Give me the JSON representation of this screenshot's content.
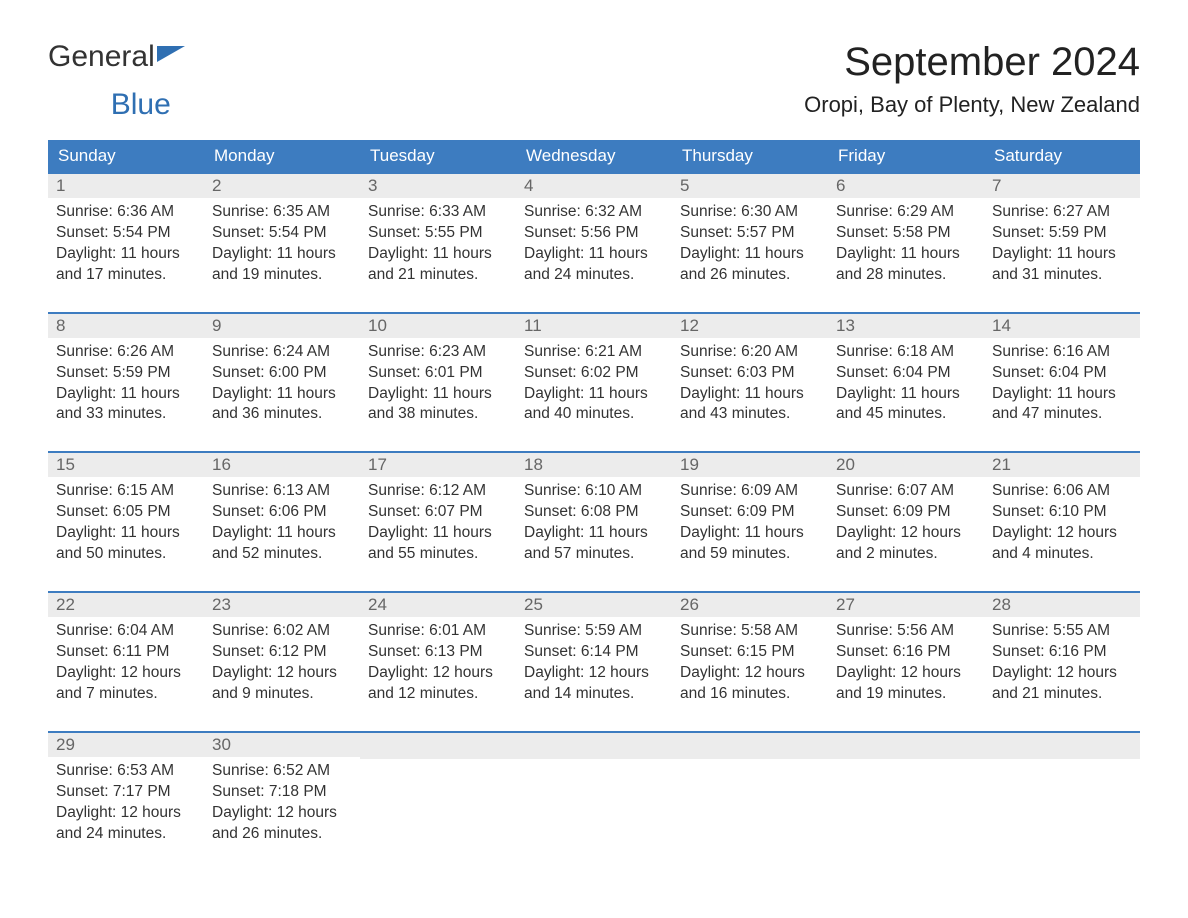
{
  "logo": {
    "text1": "General",
    "text2": "Blue"
  },
  "title": "September 2024",
  "location": "Oropi, Bay of Plenty, New Zealand",
  "colors": {
    "header_bg": "#3d7cc0",
    "header_text": "#ffffff",
    "daynum_bg": "#ececec",
    "daynum_text": "#666666",
    "body_text": "#333333",
    "row_border": "#3d7cc0",
    "logo_accent": "#2f6fb2"
  },
  "weekdays": [
    "Sunday",
    "Monday",
    "Tuesday",
    "Wednesday",
    "Thursday",
    "Friday",
    "Saturday"
  ],
  "weeks": [
    [
      {
        "n": "1",
        "sr": "6:36 AM",
        "ss": "5:54 PM",
        "dl": "11 hours and 17 minutes."
      },
      {
        "n": "2",
        "sr": "6:35 AM",
        "ss": "5:54 PM",
        "dl": "11 hours and 19 minutes."
      },
      {
        "n": "3",
        "sr": "6:33 AM",
        "ss": "5:55 PM",
        "dl": "11 hours and 21 minutes."
      },
      {
        "n": "4",
        "sr": "6:32 AM",
        "ss": "5:56 PM",
        "dl": "11 hours and 24 minutes."
      },
      {
        "n": "5",
        "sr": "6:30 AM",
        "ss": "5:57 PM",
        "dl": "11 hours and 26 minutes."
      },
      {
        "n": "6",
        "sr": "6:29 AM",
        "ss": "5:58 PM",
        "dl": "11 hours and 28 minutes."
      },
      {
        "n": "7",
        "sr": "6:27 AM",
        "ss": "5:59 PM",
        "dl": "11 hours and 31 minutes."
      }
    ],
    [
      {
        "n": "8",
        "sr": "6:26 AM",
        "ss": "5:59 PM",
        "dl": "11 hours and 33 minutes."
      },
      {
        "n": "9",
        "sr": "6:24 AM",
        "ss": "6:00 PM",
        "dl": "11 hours and 36 minutes."
      },
      {
        "n": "10",
        "sr": "6:23 AM",
        "ss": "6:01 PM",
        "dl": "11 hours and 38 minutes."
      },
      {
        "n": "11",
        "sr": "6:21 AM",
        "ss": "6:02 PM",
        "dl": "11 hours and 40 minutes."
      },
      {
        "n": "12",
        "sr": "6:20 AM",
        "ss": "6:03 PM",
        "dl": "11 hours and 43 minutes."
      },
      {
        "n": "13",
        "sr": "6:18 AM",
        "ss": "6:04 PM",
        "dl": "11 hours and 45 minutes."
      },
      {
        "n": "14",
        "sr": "6:16 AM",
        "ss": "6:04 PM",
        "dl": "11 hours and 47 minutes."
      }
    ],
    [
      {
        "n": "15",
        "sr": "6:15 AM",
        "ss": "6:05 PM",
        "dl": "11 hours and 50 minutes."
      },
      {
        "n": "16",
        "sr": "6:13 AM",
        "ss": "6:06 PM",
        "dl": "11 hours and 52 minutes."
      },
      {
        "n": "17",
        "sr": "6:12 AM",
        "ss": "6:07 PM",
        "dl": "11 hours and 55 minutes."
      },
      {
        "n": "18",
        "sr": "6:10 AM",
        "ss": "6:08 PM",
        "dl": "11 hours and 57 minutes."
      },
      {
        "n": "19",
        "sr": "6:09 AM",
        "ss": "6:09 PM",
        "dl": "11 hours and 59 minutes."
      },
      {
        "n": "20",
        "sr": "6:07 AM",
        "ss": "6:09 PM",
        "dl": "12 hours and 2 minutes."
      },
      {
        "n": "21",
        "sr": "6:06 AM",
        "ss": "6:10 PM",
        "dl": "12 hours and 4 minutes."
      }
    ],
    [
      {
        "n": "22",
        "sr": "6:04 AM",
        "ss": "6:11 PM",
        "dl": "12 hours and 7 minutes."
      },
      {
        "n": "23",
        "sr": "6:02 AM",
        "ss": "6:12 PM",
        "dl": "12 hours and 9 minutes."
      },
      {
        "n": "24",
        "sr": "6:01 AM",
        "ss": "6:13 PM",
        "dl": "12 hours and 12 minutes."
      },
      {
        "n": "25",
        "sr": "5:59 AM",
        "ss": "6:14 PM",
        "dl": "12 hours and 14 minutes."
      },
      {
        "n": "26",
        "sr": "5:58 AM",
        "ss": "6:15 PM",
        "dl": "12 hours and 16 minutes."
      },
      {
        "n": "27",
        "sr": "5:56 AM",
        "ss": "6:16 PM",
        "dl": "12 hours and 19 minutes."
      },
      {
        "n": "28",
        "sr": "5:55 AM",
        "ss": "6:16 PM",
        "dl": "12 hours and 21 minutes."
      }
    ],
    [
      {
        "n": "29",
        "sr": "6:53 AM",
        "ss": "7:17 PM",
        "dl": "12 hours and 24 minutes."
      },
      {
        "n": "30",
        "sr": "6:52 AM",
        "ss": "7:18 PM",
        "dl": "12 hours and 26 minutes."
      },
      null,
      null,
      null,
      null,
      null
    ]
  ],
  "labels": {
    "sunrise": "Sunrise: ",
    "sunset": "Sunset: ",
    "daylight": "Daylight: "
  }
}
